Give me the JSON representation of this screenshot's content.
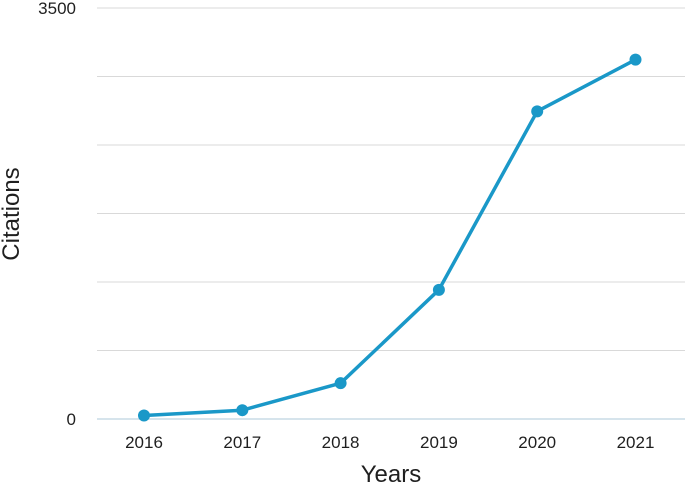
{
  "chart_data": {
    "type": "line",
    "title": "",
    "xlabel": "Years",
    "ylabel": "Citations",
    "x": [
      "2016",
      "2017",
      "2018",
      "2019",
      "2020",
      "2021"
    ],
    "series": [
      {
        "values": [
          30,
          75,
          305,
          1100,
          2620,
          3060
        ]
      }
    ],
    "ylim": [
      0,
      3500
    ],
    "ytick_labels": [
      "0",
      "3500"
    ],
    "gridlines": 7,
    "grid": true,
    "legend": "none",
    "line_color": "#1a98c8",
    "grid_color": "#d9d9d9",
    "axis_color": "#c9dbe6"
  }
}
